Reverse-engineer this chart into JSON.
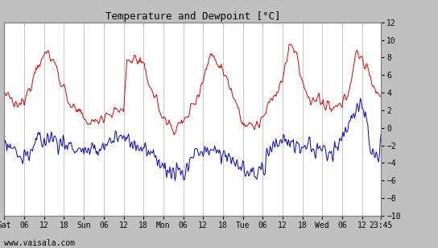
{
  "title": "Temperature and Dewpoint [°C]",
  "ylabel_right_ticks": [
    -10,
    -8,
    -6,
    -4,
    -2,
    0,
    2,
    4,
    6,
    8,
    10,
    12
  ],
  "ylim": [
    -10,
    12
  ],
  "x_tick_labels": [
    "Sat",
    "06",
    "12",
    "18",
    "Sun",
    "06",
    "12",
    "18",
    "Mon",
    "06",
    "12",
    "18",
    "Tue",
    "06",
    "12",
    "18",
    "Wed",
    "06",
    "12",
    "23:45"
  ],
  "x_tick_hours": [
    0,
    6,
    12,
    18,
    24,
    30,
    36,
    42,
    48,
    54,
    60,
    66,
    72,
    78,
    84,
    90,
    96,
    102,
    108,
    113.75
  ],
  "xlim_hours": [
    0,
    113.75
  ],
  "watermark": "www.vaisala.com",
  "bg_color": "#c0c0c0",
  "plot_bg_color": "#ffffff",
  "grid_color": "#b0b0b0",
  "temp_color": "#dd0000",
  "dew_color": "#0000cc",
  "title_fontsize": 9,
  "tick_fontsize": 7,
  "title_font": "monospace",
  "tick_font": "monospace"
}
